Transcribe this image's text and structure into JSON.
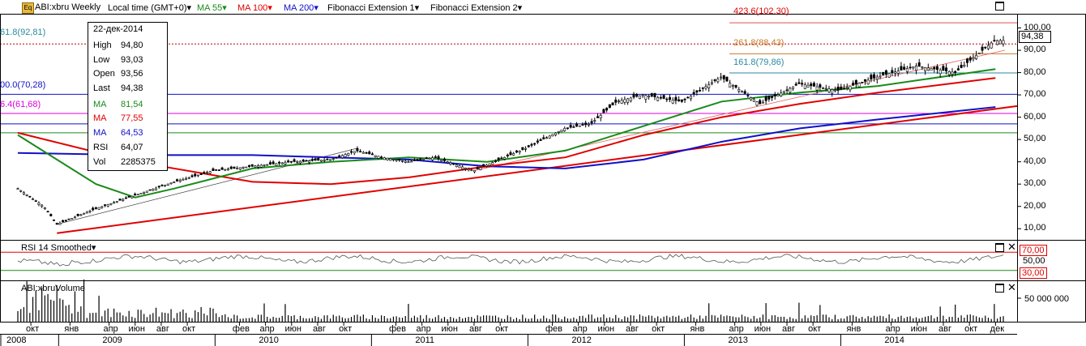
{
  "header": {
    "symbol_label": "ABI:xbru Weekly",
    "timezone": "Local time (GMT+0)",
    "indicators": [
      {
        "label": "MA 55",
        "color": "#1a8a1a"
      },
      {
        "label": "MA 100",
        "color": "#e00000"
      },
      {
        "label": "MA 200",
        "color": "#1010c8"
      },
      {
        "label": "Fibonacci Extension 1",
        "color": "#000000"
      },
      {
        "label": "Fibonacci Extension 2",
        "color": "#000000"
      }
    ]
  },
  "info_box": {
    "date": "22-дек-2014",
    "rows": [
      {
        "key": "High",
        "value": "94,80",
        "color": "#000000"
      },
      {
        "key": "Low",
        "value": "93,03",
        "color": "#000000"
      },
      {
        "key": "Open",
        "value": "93,56",
        "color": "#000000"
      },
      {
        "key": "Last",
        "value": "94,38",
        "color": "#000000"
      },
      {
        "key": "MA",
        "value": "81,54",
        "color": "#1a8a1a"
      },
      {
        "key": "MA",
        "value": "77,55",
        "color": "#e00000"
      },
      {
        "key": "MA",
        "value": "64,53",
        "color": "#1010c8"
      },
      {
        "key": "RSI",
        "value": "64,07",
        "color": "#000000"
      },
      {
        "key": "Vol",
        "value": "2285375",
        "color": "#000000"
      }
    ]
  },
  "fib_labels": [
    {
      "text": "423.6(102,30)",
      "color": "#e00000"
    },
    {
      "text": "261.8(88,43)",
      "color": "#c87828"
    },
    {
      "text": "161.8(79,86)",
      "color": "#2a8aa0"
    },
    {
      "text": "61.8(92,81)",
      "color": "#2a8aa0"
    },
    {
      "text": "00.0(70,28)",
      "color": "#1010c8"
    },
    {
      "text": "6.4(61,68)",
      "color": "#e000e0"
    }
  ],
  "price_axis": {
    "ticks": [
      "100,00",
      "90,00",
      "80,00",
      "70,00",
      "60,00",
      "50,00",
      "40,00",
      "30,00",
      "20,00",
      "10,00"
    ],
    "last_price": "94,38"
  },
  "rsi_panel": {
    "label": "RSI 14 Smoothed",
    "ticks": [
      "70,00",
      "50,00",
      "30,00"
    ]
  },
  "volume_panel": {
    "label": "ABI:xbruVolume",
    "tick": "50 000 000"
  },
  "time_axis": {
    "months": [
      "окт",
      "янв",
      "апр",
      "июн",
      "авг",
      "окт",
      "фев",
      "апр",
      "июн",
      "авг",
      "окт",
      "фев",
      "апр",
      "июн",
      "авг",
      "окт",
      "фев",
      "апр",
      "июн",
      "авг",
      "окт",
      "янв",
      "апр",
      "июн",
      "авг",
      "окт",
      "янв",
      "апр",
      "июн",
      "авг",
      "окт",
      "дек"
    ],
    "years": [
      "2008",
      "2009",
      "2010",
      "2011",
      "2012",
      "2013",
      "2014"
    ]
  },
  "chart_data": {
    "type": "candlestick",
    "title": "ABI:xbru Weekly",
    "ylim": [
      5,
      106
    ],
    "x_range": [
      "2008-09",
      "2014-12"
    ],
    "close_approx": [
      [
        "2008-09",
        28
      ],
      [
        "2008-11",
        20
      ],
      [
        "2008-12",
        12
      ],
      [
        "2009-03",
        19
      ],
      [
        "2009-06",
        25
      ],
      [
        "2009-09",
        31
      ],
      [
        "2009-12",
        36
      ],
      [
        "2010-03",
        38
      ],
      [
        "2010-06",
        40
      ],
      [
        "2010-09",
        41
      ],
      [
        "2010-11",
        45
      ],
      [
        "2011-01",
        42
      ],
      [
        "2011-03",
        40
      ],
      [
        "2011-05",
        42
      ],
      [
        "2011-08",
        36
      ],
      [
        "2011-10",
        41
      ],
      [
        "2011-12",
        46
      ],
      [
        "2012-03",
        55
      ],
      [
        "2012-05",
        57
      ],
      [
        "2012-07",
        67
      ],
      [
        "2012-09",
        70
      ],
      [
        "2012-12",
        67
      ],
      [
        "2013-03",
        78
      ],
      [
        "2013-06",
        66
      ],
      [
        "2013-09",
        75
      ],
      [
        "2013-12",
        72
      ],
      [
        "2014-03",
        78
      ],
      [
        "2014-06",
        83
      ],
      [
        "2014-09",
        80
      ],
      [
        "2014-12",
        94.38
      ]
    ],
    "ma55_approx": [
      [
        "2008-09",
        52
      ],
      [
        "2009-03",
        30
      ],
      [
        "2009-06",
        24
      ],
      [
        "2009-09",
        28
      ],
      [
        "2010-03",
        37
      ],
      [
        "2010-09",
        40
      ],
      [
        "2011-03",
        42
      ],
      [
        "2011-09",
        40
      ],
      [
        "2012-03",
        45
      ],
      [
        "2012-09",
        56
      ],
      [
        "2013-03",
        67
      ],
      [
        "2013-09",
        71
      ],
      [
        "2014-03",
        74
      ],
      [
        "2014-12",
        81.54
      ]
    ],
    "ma100_approx": [
      [
        "2008-09",
        53
      ],
      [
        "2009-06",
        40
      ],
      [
        "2010-03",
        31
      ],
      [
        "2010-09",
        30
      ],
      [
        "2011-03",
        33
      ],
      [
        "2011-09",
        38
      ],
      [
        "2012-03",
        42
      ],
      [
        "2012-09",
        52
      ],
      [
        "2013-03",
        60
      ],
      [
        "2013-09",
        66
      ],
      [
        "2014-03",
        71
      ],
      [
        "2014-12",
        77.55
      ]
    ],
    "ma200_approx": [
      [
        "2008-09",
        44
      ],
      [
        "2009-06",
        43
      ],
      [
        "2010-03",
        43
      ],
      [
        "2010-09",
        42
      ],
      [
        "2011-03",
        41
      ],
      [
        "2011-09",
        38
      ],
      [
        "2012-03",
        37
      ],
      [
        "2012-09",
        41
      ],
      [
        "2013-03",
        49
      ],
      [
        "2013-09",
        55
      ],
      [
        "2014-03",
        59
      ],
      [
        "2014-12",
        64.53
      ]
    ],
    "horizontal_levels": [
      102.3,
      92.81,
      88.43,
      79.86,
      70.28,
      61.68,
      57,
      53
    ],
    "rsi_range": [
      30,
      70
    ],
    "rsi_last": 64.07,
    "volume_last": 2285375
  }
}
